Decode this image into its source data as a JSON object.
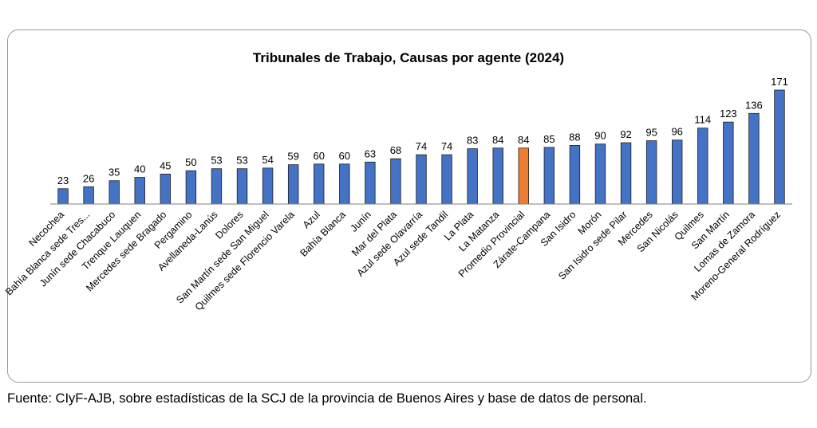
{
  "chart_data": {
    "type": "bar",
    "title": "Tribunales de Trabajo, Causas por agente (2024)",
    "xlabel": "",
    "ylabel": "",
    "ylim": [
      0,
      171
    ],
    "grid": false,
    "legend": "none",
    "categories": [
      "Necochea",
      "Bahía Blanca sede Tres...",
      "Junín sede Chacabuco",
      "Trenque Lauquen",
      "Mercedes sede Bragado",
      "Pergamino",
      "Avellaneda-Lanús",
      "Dolores",
      "San Martín sede San Miguel",
      "Quilmes sede Florencio Varela",
      "Azul",
      "Bahía Blanca",
      "Junín",
      "Mar del Plata",
      "Azul sede Olavarría",
      "Azul sede Tandil",
      "La Plata",
      "La Matanza",
      "Promedio Provincial",
      "Zárate-Campana",
      "San Isidro",
      "Morón",
      "San Isidro sede Pilar",
      "Mercedes",
      "San Nicolás",
      "Quilmes",
      "San Martín",
      "Lomas de Zamora",
      "Moreno-General Rodríguez"
    ],
    "values": [
      23,
      26,
      35,
      40,
      45,
      50,
      53,
      53,
      54,
      59,
      60,
      60,
      63,
      68,
      74,
      74,
      83,
      84,
      84,
      85,
      88,
      90,
      92,
      95,
      96,
      114,
      123,
      136,
      171
    ],
    "highlight_category": "Promedio Provincial"
  },
  "colors": {
    "bar": "#4472C4",
    "bar_highlight": "#ED7D31",
    "bar_outline": "#1F1F1F",
    "axis": "#7F7F7F"
  },
  "source_note": "Fuente: CIyF-AJB, sobre estadísticas de la SCJ de la provincia de Buenos Aires y base de datos de personal."
}
